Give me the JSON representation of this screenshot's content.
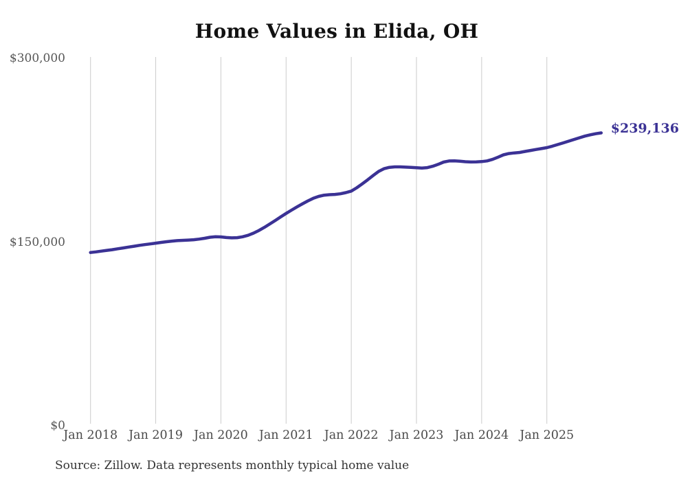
{
  "title": "Home Values in Elida, OH",
  "source_note": "Source: Zillow. Data represents monthly typical home value",
  "colors": {
    "line": "#3b3295",
    "end_label": "#3b3295",
    "grid": "#cbcbcb",
    "y_tick_text": "#555555",
    "x_tick_text": "#4a4a4a",
    "title_text": "#111111",
    "source_text": "#333333",
    "background": "#ffffff"
  },
  "chart_data": {
    "type": "line",
    "title": "Home Values in Elida, OH",
    "xlabel": "",
    "ylabel": "",
    "x_start_month": "2018-01",
    "x_end_month": "2025-11",
    "x_tick_labels": [
      "Jan 2018",
      "Jan 2019",
      "Jan 2020",
      "Jan 2021",
      "Jan 2022",
      "Jan 2023",
      "Jan 2024",
      "Jan 2025"
    ],
    "y_ticks": [
      {
        "value": 0,
        "label": "$0"
      },
      {
        "value": 150000,
        "label": "$150,000"
      },
      {
        "value": 300000,
        "label": "$300,000"
      }
    ],
    "ylim": [
      0,
      300000
    ],
    "grid": "vertical-only",
    "legend": "none",
    "series": [
      {
        "name": "Monthly typical home value",
        "color": "#3b3295",
        "values": [
          141500,
          142000,
          142600,
          143200,
          143800,
          144500,
          145200,
          145900,
          146600,
          147300,
          147900,
          148500,
          149100,
          149700,
          150300,
          150800,
          151200,
          151400,
          151600,
          151900,
          152400,
          153100,
          153900,
          154400,
          154200,
          153700,
          153400,
          153600,
          154300,
          155500,
          157300,
          159500,
          162000,
          164800,
          167600,
          170500,
          173400,
          176100,
          178700,
          181200,
          183600,
          185700,
          187300,
          188300,
          188700,
          188900,
          189400,
          190400,
          191600,
          194300,
          197500,
          200800,
          204300,
          207600,
          209900,
          211000,
          211400,
          211400,
          211200,
          211000,
          210700,
          210400,
          210800,
          211900,
          213500,
          215300,
          216200,
          216300,
          216000,
          215600,
          215400,
          215500,
          215700,
          216300,
          217500,
          219300,
          221200,
          222300,
          222800,
          223200,
          224000,
          224800,
          225600,
          226300,
          227100,
          228300,
          229600,
          231000,
          232400,
          233800,
          235200,
          236500,
          237600,
          238500,
          239136
        ]
      }
    ],
    "last_point_value": 239136,
    "last_point_label": "$239,136"
  }
}
